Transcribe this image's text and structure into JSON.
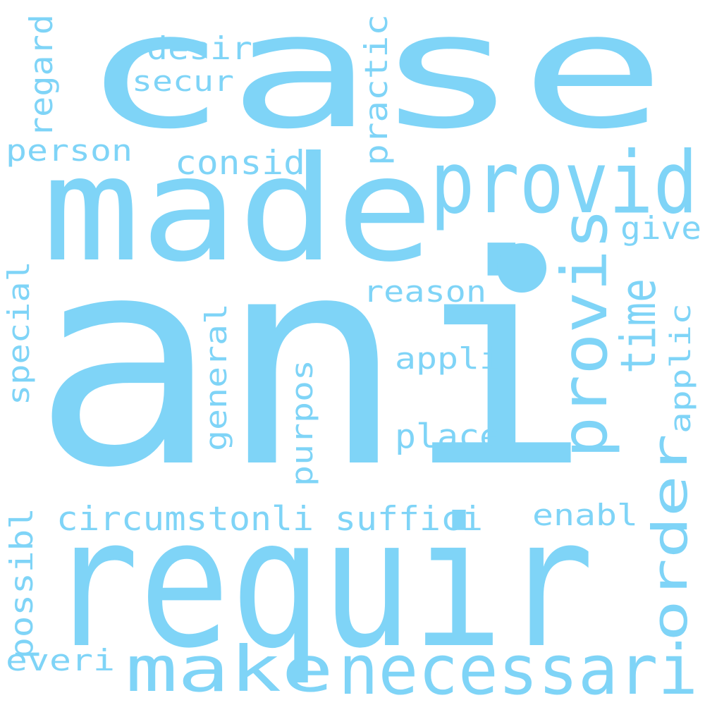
{
  "color": "#7fd4f7",
  "words": [
    {
      "text": "case",
      "rotated": false
    },
    {
      "text": "ani",
      "rotated": false
    },
    {
      "text": "requir",
      "rotated": false
    },
    {
      "text": "made",
      "rotated": false
    },
    {
      "text": "provid",
      "rotated": false
    },
    {
      "text": "necessari",
      "rotated": false
    },
    {
      "text": "make",
      "rotated": false
    },
    {
      "text": "provis",
      "rotated": true
    },
    {
      "text": "time",
      "rotated": true
    },
    {
      "text": "order",
      "rotated": true
    },
    {
      "text": "person",
      "rotated": false
    },
    {
      "text": "consid",
      "rotated": false
    },
    {
      "text": "desir",
      "rotated": false
    },
    {
      "text": "secur",
      "rotated": false
    },
    {
      "text": "regard",
      "rotated": true
    },
    {
      "text": "practic",
      "rotated": true
    },
    {
      "text": "give",
      "rotated": false
    },
    {
      "text": "reason",
      "rotated": false
    },
    {
      "text": "special",
      "rotated": true
    },
    {
      "text": "general",
      "rotated": true
    },
    {
      "text": "appli",
      "rotated": false
    },
    {
      "text": "applic",
      "rotated": true
    },
    {
      "text": "purpos",
      "rotated": true
    },
    {
      "text": "place",
      "rotated": false
    },
    {
      "text": "circumst",
      "rotated": false
    },
    {
      "text": "onli",
      "rotated": false
    },
    {
      "text": "suffici",
      "rotated": false
    },
    {
      "text": "enabl",
      "rotated": false
    },
    {
      "text": "possibl",
      "rotated": true
    },
    {
      "text": "everi",
      "rotated": false
    }
  ]
}
